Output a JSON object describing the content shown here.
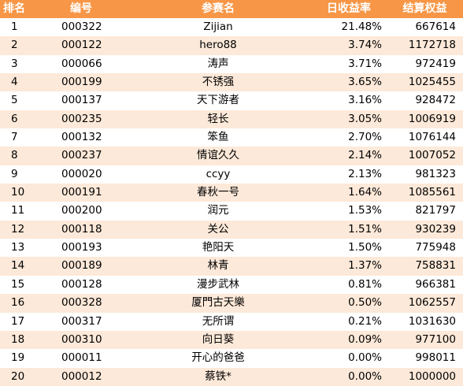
{
  "headers": {
    "rank": "排名",
    "id": "编号",
    "name": "参赛名",
    "daily_rate": "日收益率",
    "equity": "结算权益"
  },
  "rows": [
    {
      "rank": "1",
      "id": "000322",
      "name": "Zijian",
      "daily_rate": "21.48%",
      "equity": "667614"
    },
    {
      "rank": "2",
      "id": "000122",
      "name": "hero88",
      "daily_rate": "3.74%",
      "equity": "1172718"
    },
    {
      "rank": "3",
      "id": "000066",
      "name": "涛声",
      "daily_rate": "3.71%",
      "equity": "972419"
    },
    {
      "rank": "4",
      "id": "000199",
      "name": "不锈强",
      "daily_rate": "3.65%",
      "equity": "1025455"
    },
    {
      "rank": "5",
      "id": "000137",
      "name": "天下游者",
      "daily_rate": "3.16%",
      "equity": "928472"
    },
    {
      "rank": "6",
      "id": "000235",
      "name": "轻长",
      "daily_rate": "3.05%",
      "equity": "1006919"
    },
    {
      "rank": "7",
      "id": "000132",
      "name": "笨鱼",
      "daily_rate": "2.70%",
      "equity": "1076144"
    },
    {
      "rank": "8",
      "id": "000237",
      "name": "情谊久久",
      "daily_rate": "2.14%",
      "equity": "1007052"
    },
    {
      "rank": "9",
      "id": "000020",
      "name": "ccyy",
      "daily_rate": "2.13%",
      "equity": "981323"
    },
    {
      "rank": "10",
      "id": "000191",
      "name": "春秋一号",
      "daily_rate": "1.64%",
      "equity": "1085561"
    },
    {
      "rank": "11",
      "id": "000200",
      "name": "润元",
      "daily_rate": "1.53%",
      "equity": "821797"
    },
    {
      "rank": "12",
      "id": "000118",
      "name": "关公",
      "daily_rate": "1.51%",
      "equity": "930239"
    },
    {
      "rank": "13",
      "id": "000193",
      "name": "艳阳天",
      "daily_rate": "1.50%",
      "equity": "775948"
    },
    {
      "rank": "14",
      "id": "000189",
      "name": "林青",
      "daily_rate": "1.37%",
      "equity": "758831"
    },
    {
      "rank": "15",
      "id": "000128",
      "name": "漫步武林",
      "daily_rate": "0.81%",
      "equity": "966381"
    },
    {
      "rank": "16",
      "id": "000328",
      "name": "厦門古天樂",
      "daily_rate": "0.50%",
      "equity": "1062557"
    },
    {
      "rank": "17",
      "id": "000317",
      "name": "无所谓",
      "daily_rate": "0.21%",
      "equity": "1031630"
    },
    {
      "rank": "18",
      "id": "000310",
      "name": "向日葵",
      "daily_rate": "0.09%",
      "equity": "977100"
    },
    {
      "rank": "19",
      "id": "000011",
      "name": "开心的爸爸",
      "daily_rate": "0.00%",
      "equity": "998011"
    },
    {
      "rank": "20",
      "id": "000012",
      "name": "蔡铁*",
      "daily_rate": "0.00%",
      "equity": "1000000"
    }
  ],
  "colors": {
    "header_bg": "#f79646",
    "header_text": "#ffffff",
    "stripe": "#fde9d9"
  }
}
